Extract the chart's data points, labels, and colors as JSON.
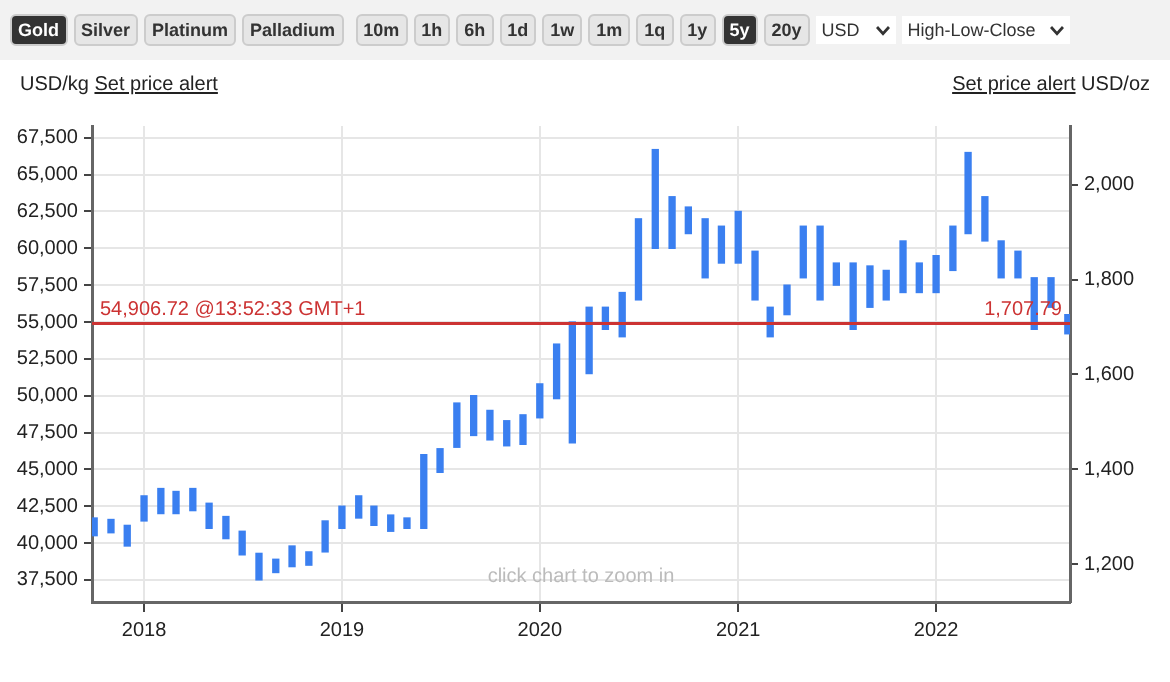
{
  "chart_data": {
    "type": "bar",
    "ylabel": "USD/kg",
    "y2label": "USD/oz",
    "x": [
      "2017-10",
      "2017-11",
      "2017-12",
      "2018-01",
      "2018-02",
      "2018-03",
      "2018-04",
      "2018-05",
      "2018-06",
      "2018-07",
      "2018-08",
      "2018-09",
      "2018-10",
      "2018-11",
      "2018-12",
      "2019-01",
      "2019-02",
      "2019-03",
      "2019-04",
      "2019-05",
      "2019-06",
      "2019-07",
      "2019-08",
      "2019-09",
      "2019-10",
      "2019-11",
      "2019-12",
      "2020-01",
      "2020-02",
      "2020-03",
      "2020-04",
      "2020-05",
      "2020-06",
      "2020-07",
      "2020-08",
      "2020-09",
      "2020-10",
      "2020-11",
      "2020-12",
      "2021-01",
      "2021-02",
      "2021-03",
      "2021-04",
      "2021-05",
      "2021-06",
      "2021-07",
      "2021-08",
      "2021-09",
      "2021-10",
      "2021-11",
      "2021-12",
      "2022-01",
      "2022-02",
      "2022-03",
      "2022-04",
      "2022-05",
      "2022-06",
      "2022-07",
      "2022-08",
      "2022-09"
    ],
    "base": [
      40500,
      40700,
      39800,
      41500,
      42000,
      42000,
      42200,
      41000,
      40300,
      39200,
      37500,
      38000,
      38400,
      38500,
      39400,
      41000,
      41700,
      41200,
      40800,
      41000,
      41000,
      44800,
      46500,
      47300,
      47000,
      46600,
      46700,
      48500,
      49800,
      46800,
      51500,
      54500,
      54000,
      56500,
      60000,
      60000,
      61000,
      58000,
      59000,
      59000,
      56500,
      54000,
      55500,
      58000,
      56500,
      57500,
      54500,
      56000,
      56500,
      57000,
      57000,
      57000,
      58500,
      61000,
      60500,
      58000,
      58000,
      54500,
      56000,
      54200
    ],
    "values": [
      1200,
      900,
      1400,
      1700,
      1700,
      1500,
      1500,
      1700,
      1500,
      1600,
      1800,
      900,
      1400,
      900,
      2100,
      1500,
      1500,
      1300,
      1100,
      700,
      5000,
      1600,
      3000,
      2700,
      2000,
      1700,
      2000,
      2300,
      3700,
      8200,
      4500,
      1500,
      3000,
      5500,
      6700,
      3500,
      1800,
      4000,
      2500,
      3500,
      3300,
      2000,
      2000,
      3500,
      5000,
      1500,
      4500,
      2800,
      2000,
      3500,
      2000,
      2500,
      3000,
      5500,
      3000,
      2500,
      1800,
      3500,
      2000,
      1300
    ],
    "color": "#3a7ff0",
    "xlim": [
      "2017-09-27",
      "2022-09-05"
    ],
    "xticks": [
      "2018",
      "2019",
      "2020",
      "2021",
      "2022"
    ],
    "ylim": [
      36000,
      68300
    ],
    "yticks": [
      {
        "value": 37500,
        "label": "37,500"
      },
      {
        "value": 40000,
        "label": "40,000"
      },
      {
        "value": 42500,
        "label": "42,500"
      },
      {
        "value": 45000,
        "label": "45,000"
      },
      {
        "value": 47500,
        "label": "47,500"
      },
      {
        "value": 50000,
        "label": "50,000"
      },
      {
        "value": 52500,
        "label": "52,500"
      },
      {
        "value": 55000,
        "label": "55,000"
      },
      {
        "value": 57500,
        "label": "57,500"
      },
      {
        "value": 60000,
        "label": "60,000"
      },
      {
        "value": 62500,
        "label": "62,500"
      },
      {
        "value": 65000,
        "label": "65,000"
      },
      {
        "value": 67500,
        "label": "67,500"
      }
    ],
    "y2lim": [
      1120,
      2124
    ],
    "y2ticks": [
      {
        "value": 1200,
        "label": "1,200"
      },
      {
        "value": 1400,
        "label": "1,400"
      },
      {
        "value": 1600,
        "label": "1,600"
      },
      {
        "value": 1800,
        "label": "1,800"
      },
      {
        "value": 2000,
        "label": "2,000"
      }
    ],
    "ref_lines": [
      {
        "axis": "y",
        "value": 54906.72,
        "label": "54,906.72 @13:52:33 GMT+1",
        "color": "#cc3333"
      }
    ],
    "annotations": [
      {
        "text": "1,707.79",
        "y": 54906.72
      },
      "Gold",
      "Silver",
      "Platinum",
      "Palladium",
      "10m",
      "1h",
      "6h",
      "1d",
      "1w",
      "1m",
      "1q",
      "1y",
      "5y",
      "20y",
      "USD",
      "High-Low-Close",
      "Set price alert",
      "Set price alert",
      "click chart to zoom in"
    ],
    "grid": true,
    "legend": false
  }
}
